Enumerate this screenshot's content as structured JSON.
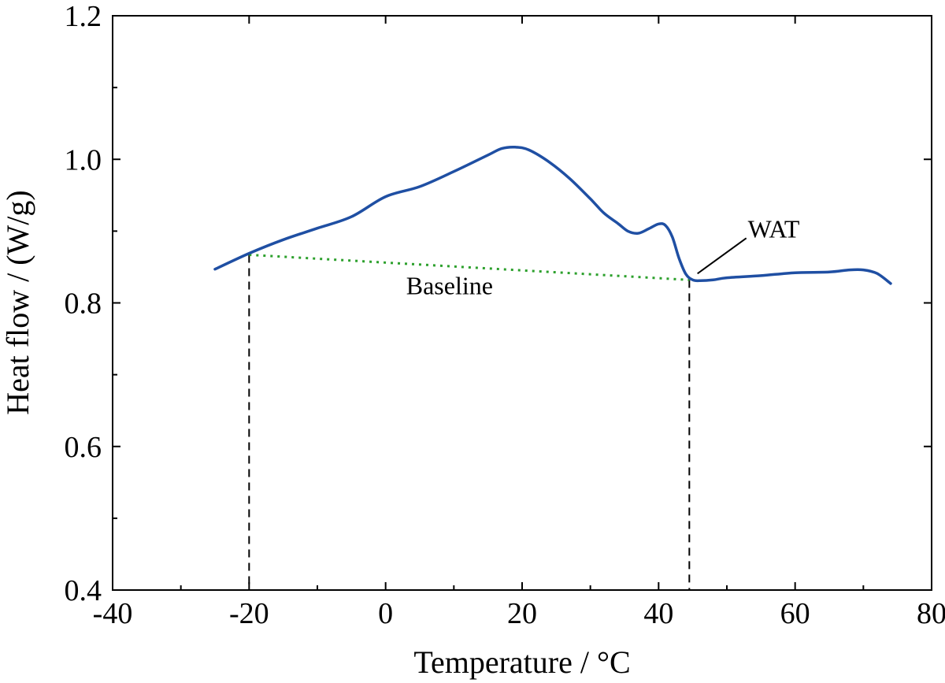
{
  "chart_data": {
    "type": "line",
    "xlabel": "Temperature / °C",
    "ylabel": "Heat flow / (W/g)",
    "xlim": [
      -40,
      80
    ],
    "ylim": [
      0.4,
      1.2
    ],
    "x_ticks": [
      -40,
      -20,
      0,
      20,
      40,
      60,
      80
    ],
    "x_tick_labels": [
      "-40",
      "-20",
      "0",
      "20",
      "40",
      "60",
      "80"
    ],
    "y_ticks": [
      0.4,
      0.6,
      0.8,
      1.0,
      1.2
    ],
    "y_tick_labels": [
      "0.4",
      "0.6",
      "0.8",
      "1.0",
      "1.2"
    ],
    "x_minor_ticks": [
      -30,
      -10,
      10,
      30,
      50,
      70
    ],
    "y_minor_ticks": [
      0.5,
      0.7,
      0.9,
      1.1
    ],
    "grid": false,
    "series": [
      {
        "color": "#1f4fa3",
        "points": [
          [
            -25,
            0.847
          ],
          [
            -20,
            0.869
          ],
          [
            -15,
            0.888
          ],
          [
            -10,
            0.904
          ],
          [
            -5,
            0.92
          ],
          [
            0,
            0.948
          ],
          [
            5,
            0.962
          ],
          [
            10,
            0.983
          ],
          [
            15,
            1.006
          ],
          [
            17,
            1.015
          ],
          [
            19,
            1.017
          ],
          [
            21,
            1.013
          ],
          [
            24,
            0.996
          ],
          [
            27,
            0.973
          ],
          [
            30,
            0.945
          ],
          [
            32,
            0.925
          ],
          [
            34,
            0.911
          ],
          [
            35.5,
            0.9
          ],
          [
            37,
            0.897
          ],
          [
            38.5,
            0.903
          ],
          [
            40,
            0.91
          ],
          [
            41,
            0.908
          ],
          [
            42,
            0.892
          ],
          [
            43,
            0.862
          ],
          [
            44,
            0.84
          ],
          [
            45,
            0.832
          ],
          [
            46,
            0.831
          ],
          [
            48,
            0.832
          ],
          [
            50,
            0.835
          ],
          [
            55,
            0.838
          ],
          [
            60,
            0.842
          ],
          [
            65,
            0.843
          ],
          [
            68,
            0.846
          ],
          [
            70,
            0.846
          ],
          [
            72,
            0.841
          ],
          [
            74,
            0.827
          ]
        ]
      }
    ],
    "baseline": {
      "label": "Baseline",
      "color": "#2ca02c",
      "from": [
        -20,
        0.867
      ],
      "to": [
        44.5,
        0.832
      ]
    },
    "reference_lines_x": [
      -20,
      44.5
    ],
    "annotation": {
      "text": "WAT",
      "points_to": [
        45,
        0.832
      ]
    }
  }
}
